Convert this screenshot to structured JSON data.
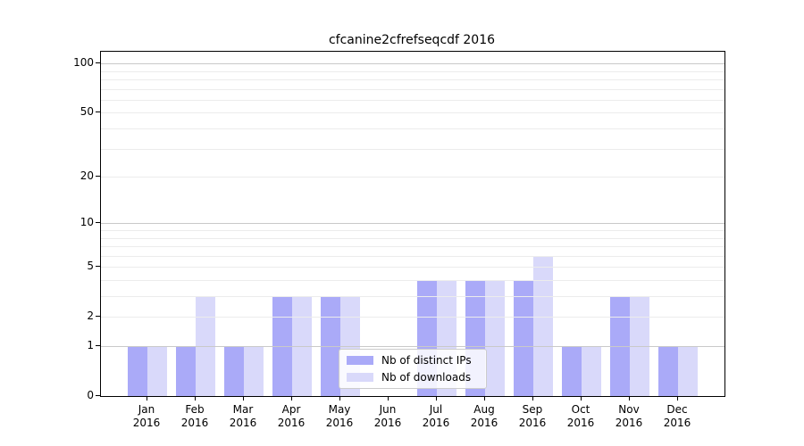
{
  "chart_data": {
    "type": "bar",
    "title": "cfcanine2cfrefseqcdf 2016",
    "categories": [
      {
        "month": "Jan",
        "year": "2016"
      },
      {
        "month": "Feb",
        "year": "2016"
      },
      {
        "month": "Mar",
        "year": "2016"
      },
      {
        "month": "Apr",
        "year": "2016"
      },
      {
        "month": "May",
        "year": "2016"
      },
      {
        "month": "Jun",
        "year": "2016"
      },
      {
        "month": "Jul",
        "year": "2016"
      },
      {
        "month": "Aug",
        "year": "2016"
      },
      {
        "month": "Sep",
        "year": "2016"
      },
      {
        "month": "Oct",
        "year": "2016"
      },
      {
        "month": "Nov",
        "year": "2016"
      },
      {
        "month": "Dec",
        "year": "2016"
      }
    ],
    "series": [
      {
        "name": "Nb of distinct IPs",
        "color": "#aaaaf8",
        "values": [
          1,
          1,
          1,
          3,
          3,
          0,
          4,
          4,
          4,
          1,
          3,
          1
        ]
      },
      {
        "name": "Nb of downloads",
        "color": "#d9d9fa",
        "values": [
          1,
          3,
          1,
          3,
          3,
          0,
          4,
          4,
          6,
          1,
          3,
          1
        ]
      }
    ],
    "y_axis": {
      "scale": "log10(1+x)",
      "tick_values": [
        0,
        1,
        2,
        5,
        10,
        20,
        50,
        100
      ],
      "tick_labels": [
        "0",
        "1",
        "2",
        "5",
        "10",
        "20",
        "50",
        "100"
      ],
      "minor_gridlines": [
        2,
        3,
        4,
        5,
        6,
        7,
        8,
        9,
        20,
        30,
        40,
        50,
        60,
        70,
        80,
        90
      ],
      "decade_gridlines": [
        1,
        10,
        100
      ],
      "ylim": [
        0,
        118
      ]
    },
    "xlabel": "",
    "ylabel": "",
    "grid": true,
    "legend_position": "bottom-center"
  },
  "colors": {
    "bar_distinct_ips": "#aaaaf8",
    "bar_downloads": "#d9d9fa",
    "grid_minor": "#ececec",
    "grid_decade": "#c9c9c9",
    "axis": "#000000",
    "background": "#ffffff",
    "legend_border": "#cccccc"
  }
}
